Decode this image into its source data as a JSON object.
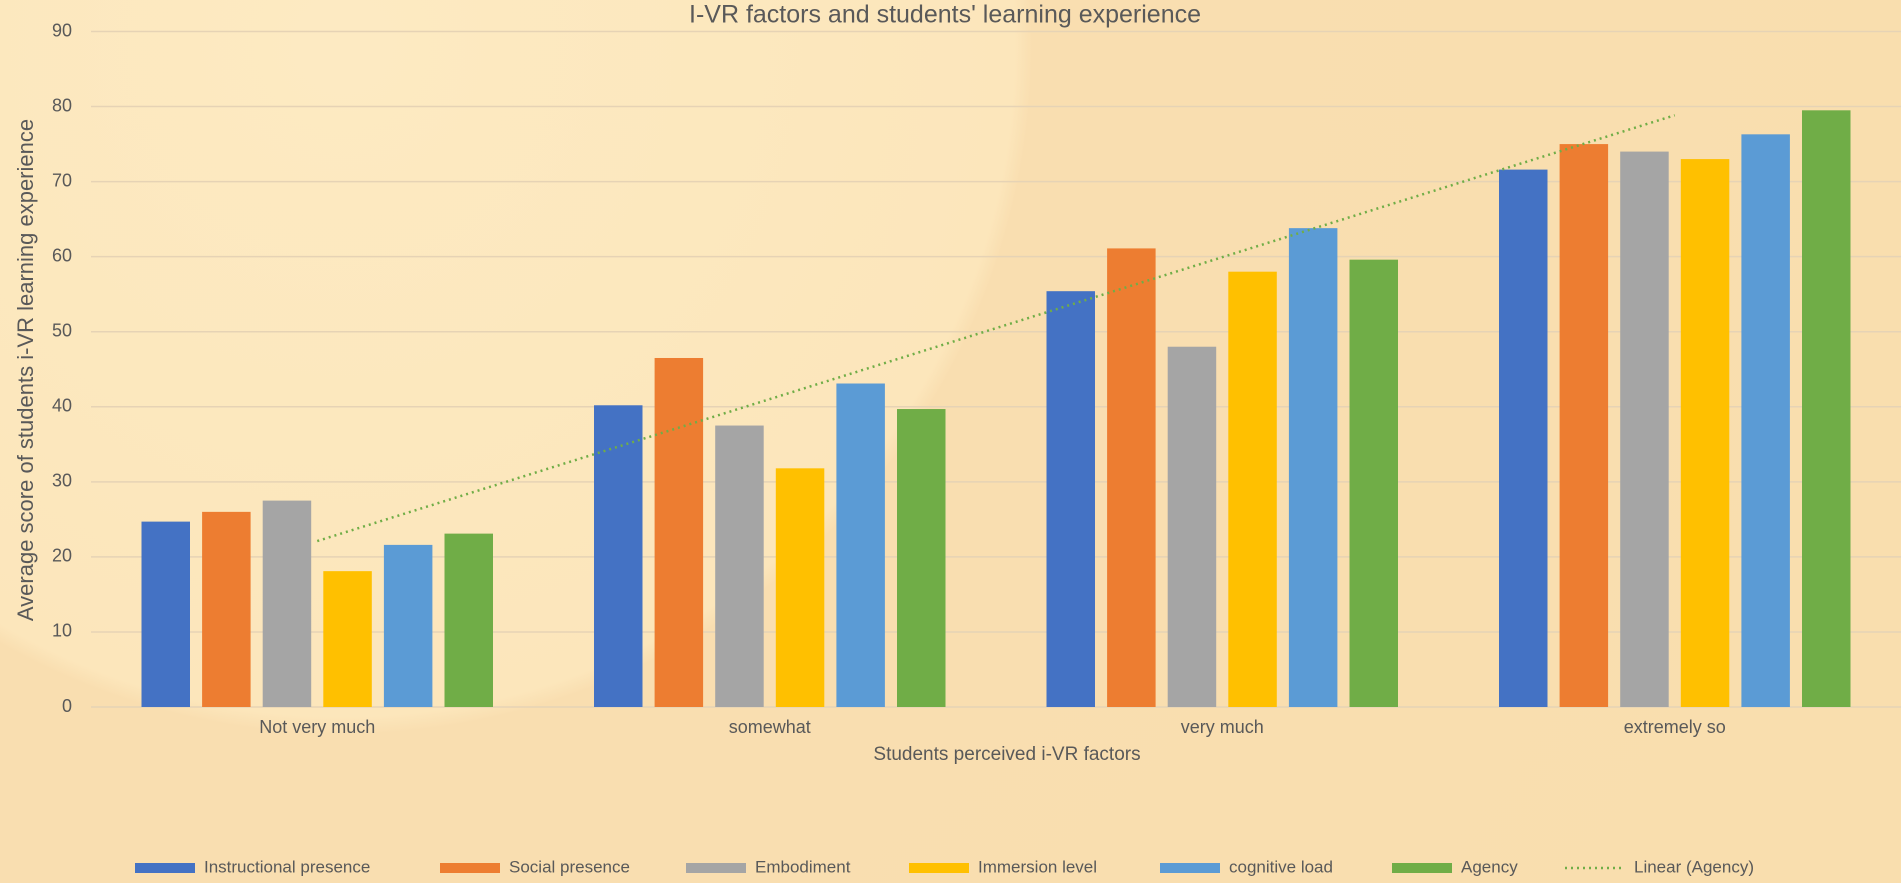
{
  "chart_data": {
    "type": "bar",
    "title": "I-VR factors and students' learning experience",
    "x_label": "Students perceived i-VR factors",
    "y_label": "Average score of students i-VR learning experience",
    "categories": [
      "Not very much",
      "somewhat",
      "very much",
      "extremely so"
    ],
    "series": [
      {
        "name": "Instructional presence",
        "color": "#4472c4",
        "values": [
          24.7,
          40.2,
          55.4,
          71.6
        ]
      },
      {
        "name": "Social presence",
        "color": "#ed7d31",
        "values": [
          26.0,
          46.5,
          61.1,
          75.0
        ]
      },
      {
        "name": "Embodiment",
        "color": "#a5a5a5",
        "values": [
          27.5,
          37.5,
          48.0,
          74.0
        ]
      },
      {
        "name": "Immersion level",
        "color": "#ffc000",
        "values": [
          18.1,
          31.8,
          58.0,
          73.0
        ]
      },
      {
        "name": "cognitive load",
        "color": "#5b9bd5",
        "values": [
          21.6,
          43.1,
          63.8,
          76.3
        ]
      },
      {
        "name": "Agency",
        "color": "#70ad47",
        "values": [
          23.1,
          39.7,
          59.6,
          79.5
        ]
      }
    ],
    "trendline": {
      "name": "Linear (Agency)",
      "type": "linear",
      "of": "Agency",
      "color": "#70ad47"
    },
    "ylim": [
      0,
      90
    ],
    "yticks": [
      0,
      10,
      20,
      30,
      40,
      50,
      60,
      70,
      80,
      90
    ],
    "grid": true,
    "legend": "bottom"
  }
}
